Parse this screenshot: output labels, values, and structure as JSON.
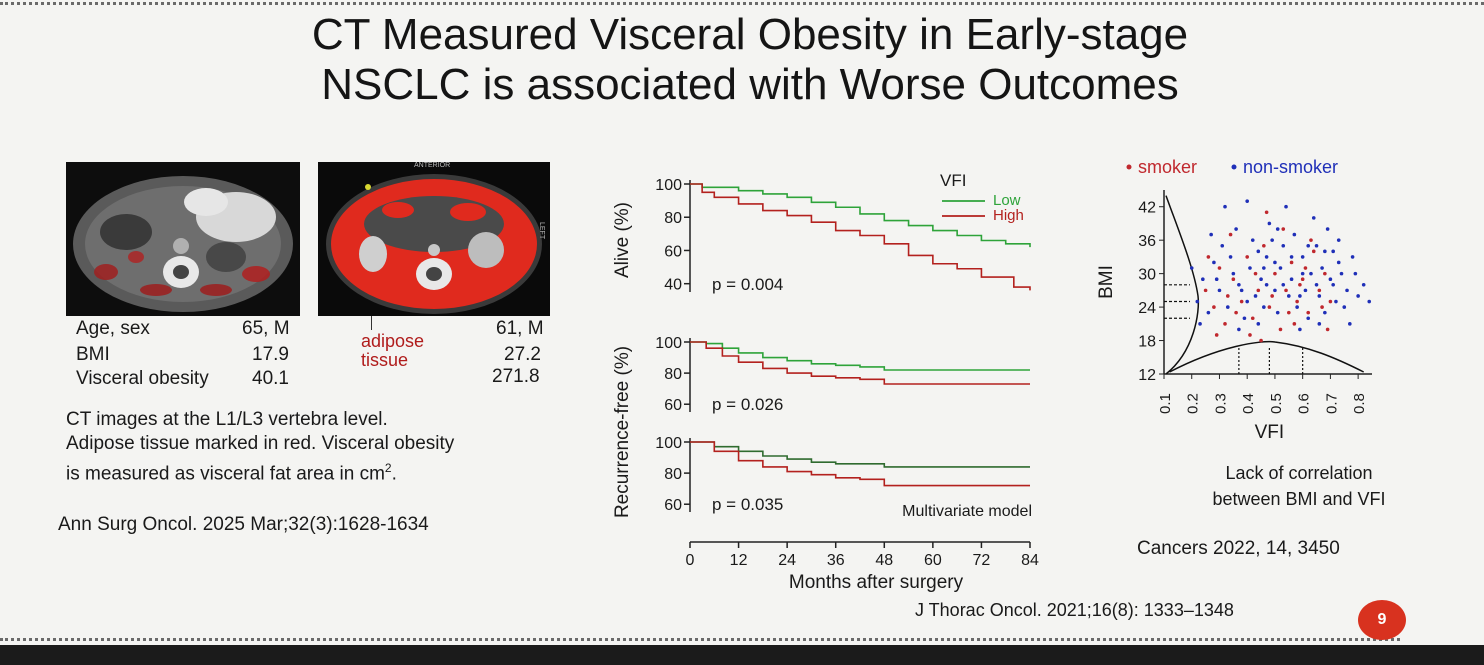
{
  "slide": {
    "title_line1": "CT Measured Visceral Obesity in Early-stage",
    "title_line2": "NSCLC is associated with Worse Outcomes",
    "page_number": "9"
  },
  "ct_panel": {
    "image_label_top": "ANTERIOR",
    "image_label_side": "LEFT",
    "labels": {
      "age_sex": "Age, sex",
      "bmi": "BMI",
      "visceral_obesity": "Visceral obesity"
    },
    "patient1": {
      "age_sex": "65, M",
      "bmi": "17.9",
      "visceral_obesity": "40.1"
    },
    "patient2": {
      "age_sex": "61, M",
      "bmi": "27.2",
      "visceral_obesity": "271.8"
    },
    "adipose_label_line1": "adipose",
    "adipose_label_line2": "tissue",
    "caption_line1": "CT images at the L1/L3 vertebra level.",
    "caption_line2": "Adipose tissue marked in red. Visceral obesity",
    "caption_line3": "is measured as visceral fat area in cm",
    "caption_superscript": "2",
    "caption_end": ".",
    "citation": "Ann Surg Oncol. 2025 Mar;32(3):1628-1634"
  },
  "km_citation": "J Thorac Oncol. 2021;16(8): 1333–1348",
  "scatter_caption_line1": "Lack of correlation",
  "scatter_caption_line2": "between BMI and VFI",
  "scatter_citation": "Cancers 2022, 14, 3450",
  "colors": {
    "low": "#2ea33a",
    "high": "#b3211e",
    "mv_low": "#2f6b2f",
    "mv_high": "#b3211e",
    "smoker": "#c0282e",
    "nonsmoker": "#1f2fb8"
  },
  "chart_data": [
    {
      "type": "line",
      "ylabel": "Alive (%)",
      "legend_title": "VFI",
      "annotation": "p = 0.004",
      "ylim": [
        35,
        100
      ],
      "yticks": [
        40,
        60,
        80,
        100
      ],
      "xlim": [
        0,
        84
      ],
      "series": [
        {
          "name": "Low",
          "points": [
            [
              0,
              100
            ],
            [
              3,
              98
            ],
            [
              6,
              98
            ],
            [
              12,
              96
            ],
            [
              18,
              94
            ],
            [
              24,
              92
            ],
            [
              30,
              89
            ],
            [
              36,
              86
            ],
            [
              42,
              82
            ],
            [
              48,
              78
            ],
            [
              54,
              75
            ],
            [
              60,
              72
            ],
            [
              66,
              69
            ],
            [
              72,
              66
            ],
            [
              78,
              64
            ],
            [
              84,
              62
            ]
          ]
        },
        {
          "name": "High",
          "points": [
            [
              0,
              100
            ],
            [
              3,
              95
            ],
            [
              6,
              92
            ],
            [
              12,
              88
            ],
            [
              18,
              84
            ],
            [
              24,
              81
            ],
            [
              30,
              77
            ],
            [
              36,
              72
            ],
            [
              42,
              69
            ],
            [
              48,
              64
            ],
            [
              54,
              57
            ],
            [
              60,
              52
            ],
            [
              66,
              49
            ],
            [
              72,
              44
            ],
            [
              78,
              44
            ],
            [
              80,
              38
            ],
            [
              84,
              36
            ]
          ]
        }
      ]
    },
    {
      "type": "line",
      "ylabel": "Recurrence-free (%)",
      "annotation": "p = 0.026",
      "ylim": [
        55,
        100
      ],
      "yticks": [
        60,
        80,
        100
      ],
      "xlim": [
        0,
        84
      ],
      "series": [
        {
          "name": "Low",
          "points": [
            [
              0,
              100
            ],
            [
              4,
              99
            ],
            [
              8,
              96
            ],
            [
              12,
              93
            ],
            [
              18,
              90
            ],
            [
              24,
              88
            ],
            [
              30,
              86
            ],
            [
              36,
              85
            ],
            [
              42,
              84
            ],
            [
              48,
              82
            ],
            [
              60,
              82
            ],
            [
              72,
              82
            ],
            [
              84,
              82
            ]
          ]
        },
        {
          "name": "High",
          "points": [
            [
              0,
              100
            ],
            [
              4,
              96
            ],
            [
              8,
              91
            ],
            [
              12,
              87
            ],
            [
              18,
              83
            ],
            [
              24,
              80
            ],
            [
              30,
              78
            ],
            [
              36,
              77
            ],
            [
              42,
              76
            ],
            [
              48,
              73
            ],
            [
              60,
              73
            ],
            [
              72,
              73
            ],
            [
              84,
              73
            ]
          ]
        }
      ]
    },
    {
      "type": "line",
      "annotation_left": "p = 0.035",
      "annotation_right": "Multivariate model",
      "ylim": [
        55,
        100
      ],
      "yticks": [
        60,
        80,
        100
      ],
      "xlim": [
        0,
        84
      ],
      "xticks": [
        0,
        12,
        24,
        36,
        48,
        60,
        72,
        84
      ],
      "xlabel": "Months after surgery",
      "series": [
        {
          "name": "Low",
          "points": [
            [
              0,
              100
            ],
            [
              6,
              97
            ],
            [
              12,
              94
            ],
            [
              18,
              91
            ],
            [
              24,
              89
            ],
            [
              30,
              87
            ],
            [
              36,
              86
            ],
            [
              42,
              86
            ],
            [
              48,
              84
            ],
            [
              60,
              84
            ],
            [
              72,
              84
            ],
            [
              84,
              84
            ]
          ]
        },
        {
          "name": "High",
          "points": [
            [
              0,
              100
            ],
            [
              6,
              94
            ],
            [
              12,
              88
            ],
            [
              18,
              84
            ],
            [
              24,
              81
            ],
            [
              30,
              79
            ],
            [
              36,
              77
            ],
            [
              42,
              76
            ],
            [
              48,
              72
            ],
            [
              60,
              72
            ],
            [
              72,
              72
            ],
            [
              84,
              72
            ]
          ]
        }
      ]
    },
    {
      "type": "scatter",
      "xlabel": "VFI",
      "ylabel": "BMI",
      "xlim": [
        0.1,
        0.85
      ],
      "ylim": [
        12,
        45
      ],
      "xticks": [
        0.1,
        0.2,
        0.3,
        0.4,
        0.5,
        0.6,
        0.7,
        0.8
      ],
      "yticks": [
        12,
        18,
        24,
        30,
        36,
        42
      ],
      "legend": [
        "smoker",
        "non-smoker"
      ],
      "series": [
        {
          "name": "smoker",
          "points": [
            [
              0.25,
              27
            ],
            [
              0.28,
              24
            ],
            [
              0.3,
              31
            ],
            [
              0.32,
              21
            ],
            [
              0.35,
              29
            ],
            [
              0.38,
              25
            ],
            [
              0.4,
              33
            ],
            [
              0.42,
              22
            ],
            [
              0.44,
              27
            ],
            [
              0.46,
              35
            ],
            [
              0.48,
              24
            ],
            [
              0.5,
              30
            ],
            [
              0.52,
              20
            ],
            [
              0.54,
              27
            ],
            [
              0.56,
              32
            ],
            [
              0.58,
              25
            ],
            [
              0.6,
              29
            ],
            [
              0.62,
              23
            ],
            [
              0.64,
              34
            ],
            [
              0.66,
              27
            ],
            [
              0.68,
              30
            ],
            [
              0.7,
              25
            ],
            [
              0.26,
              33
            ],
            [
              0.34,
              37
            ],
            [
              0.41,
              19
            ],
            [
              0.47,
              41
            ],
            [
              0.53,
              38
            ],
            [
              0.57,
              21
            ],
            [
              0.63,
              36
            ],
            [
              0.69,
              20
            ],
            [
              0.29,
              19
            ],
            [
              0.36,
              23
            ],
            [
              0.43,
              30
            ],
            [
              0.49,
              26
            ],
            [
              0.55,
              23
            ],
            [
              0.61,
              31
            ],
            [
              0.67,
              24
            ],
            [
              0.33,
              26
            ],
            [
              0.45,
              18
            ],
            [
              0.59,
              28
            ]
          ]
        },
        {
          "name": "non-smoker",
          "points": [
            [
              0.22,
              25
            ],
            [
              0.24,
              29
            ],
            [
              0.26,
              23
            ],
            [
              0.28,
              32
            ],
            [
              0.3,
              27
            ],
            [
              0.31,
              35
            ],
            [
              0.33,
              24
            ],
            [
              0.35,
              30
            ],
            [
              0.36,
              38
            ],
            [
              0.38,
              27
            ],
            [
              0.39,
              22
            ],
            [
              0.41,
              31
            ],
            [
              0.42,
              36
            ],
            [
              0.43,
              26
            ],
            [
              0.45,
              29
            ],
            [
              0.46,
              24
            ],
            [
              0.47,
              33
            ],
            [
              0.48,
              39
            ],
            [
              0.5,
              27
            ],
            [
              0.51,
              23
            ],
            [
              0.52,
              31
            ],
            [
              0.53,
              35
            ],
            [
              0.55,
              26
            ],
            [
              0.56,
              29
            ],
            [
              0.57,
              37
            ],
            [
              0.58,
              24
            ],
            [
              0.6,
              33
            ],
            [
              0.61,
              27
            ],
            [
              0.62,
              22
            ],
            [
              0.63,
              30
            ],
            [
              0.65,
              35
            ],
            [
              0.66,
              26
            ],
            [
              0.67,
              31
            ],
            [
              0.68,
              23
            ],
            [
              0.7,
              29
            ],
            [
              0.71,
              34
            ],
            [
              0.72,
              25
            ],
            [
              0.74,
              30
            ],
            [
              0.76,
              27
            ],
            [
              0.78,
              33
            ],
            [
              0.8,
              26
            ],
            [
              0.27,
              37
            ],
            [
              0.32,
              42
            ],
            [
              0.37,
              20
            ],
            [
              0.4,
              43
            ],
            [
              0.44,
              21
            ],
            [
              0.49,
              36
            ],
            [
              0.54,
              42
            ],
            [
              0.59,
              20
            ],
            [
              0.64,
              40
            ],
            [
              0.69,
              38
            ],
            [
              0.73,
              36
            ],
            [
              0.77,
              21
            ],
            [
              0.34,
              33
            ],
            [
              0.37,
              28
            ],
            [
              0.4,
              25
            ],
            [
              0.44,
              34
            ],
            [
              0.47,
              28
            ],
            [
              0.5,
              32
            ],
            [
              0.53,
              28
            ],
            [
              0.56,
              33
            ],
            [
              0.59,
              26
            ],
            [
              0.62,
              35
            ],
            [
              0.65,
              28
            ],
            [
              0.68,
              34
            ],
            [
              0.71,
              28
            ],
            [
              0.75,
              24
            ],
            [
              0.79,
              30
            ],
            [
              0.82,
              28
            ],
            [
              0.2,
              31
            ],
            [
              0.23,
              21
            ],
            [
              0.29,
              29
            ],
            [
              0.46,
              31
            ],
            [
              0.51,
              38
            ],
            [
              0.6,
              30
            ],
            [
              0.66,
              21
            ],
            [
              0.73,
              32
            ],
            [
              0.84,
              25
            ]
          ]
        }
      ]
    }
  ]
}
